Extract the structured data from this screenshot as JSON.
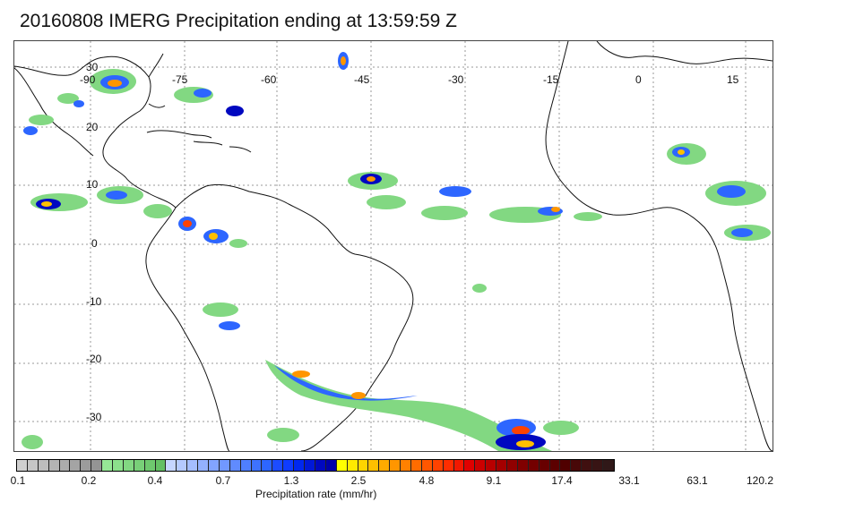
{
  "title": "20160808 IMERG Precipitation ending at 13:59:59 Z",
  "map": {
    "lon_labels": [
      "-90",
      "-75",
      "-60",
      "-45",
      "-30",
      "-15",
      "0",
      "15"
    ],
    "lat_labels": [
      "30",
      "20",
      "10",
      "0",
      "-10",
      "-20",
      "-30"
    ]
  },
  "colorbar": {
    "title": "Precipitation rate (mm/hr)",
    "ticks": [
      "0.1",
      "0.2",
      "0.4",
      "0.7",
      "1.3",
      "2.5",
      "4.8",
      "9.1",
      "17.4",
      "33.1",
      "63.1",
      "120.2"
    ],
    "colors": [
      "#cfcfcf",
      "#c6c6c6",
      "#bdbdbd",
      "#b4b4b4",
      "#acacac",
      "#a4a4a4",
      "#9c9c9c",
      "#949494",
      "#96e896",
      "#8ce08c",
      "#82d882",
      "#78d078",
      "#6ec86e",
      "#64c064",
      "#c6d6ff",
      "#b5caff",
      "#a4bdff",
      "#93b1ff",
      "#82a4ff",
      "#7198ff",
      "#608bff",
      "#4f7fff",
      "#3e72ff",
      "#2d66ff",
      "#1c4cff",
      "#0f3cff",
      "#0028f0",
      "#0018d8",
      "#0008c0",
      "#0000aa",
      "#ffff00",
      "#ffea00",
      "#ffd500",
      "#ffc000",
      "#ffab00",
      "#ff9600",
      "#ff8100",
      "#ff6c00",
      "#ff5700",
      "#ff4200",
      "#ff2d00",
      "#f21800",
      "#e00000",
      "#cc0000",
      "#b80000",
      "#a40000",
      "#900000",
      "#800000",
      "#740000",
      "#680000",
      "#5c0000",
      "#500000",
      "#480808",
      "#401010",
      "#381414",
      "#301818"
    ]
  }
}
